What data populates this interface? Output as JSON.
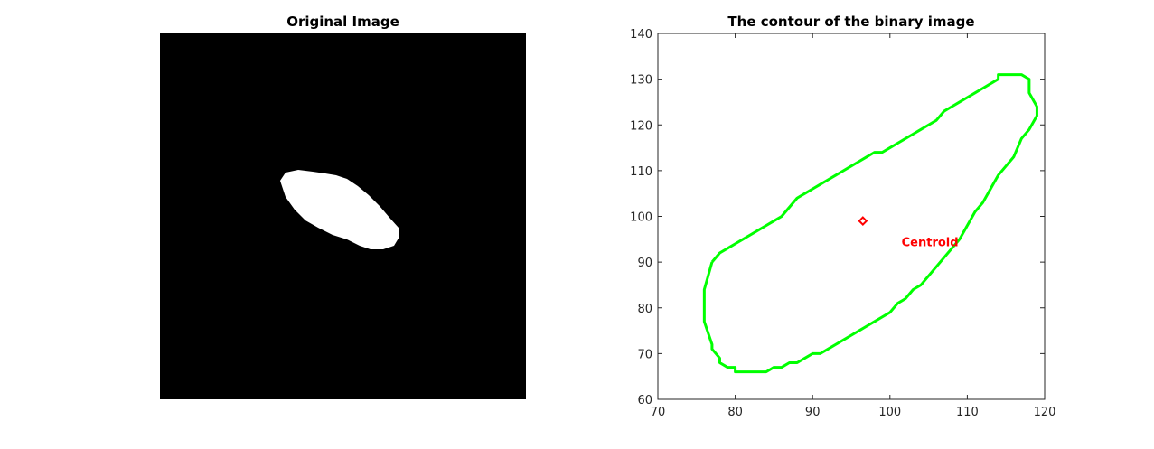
{
  "chart_data": [
    {
      "type": "image",
      "title": "Original Image",
      "background_color": "#000000",
      "foreground_color": "#ffffff",
      "blob_shape": "tilted white ellipse"
    },
    {
      "type": "line",
      "title": "The contour of the binary image",
      "xlabel": "",
      "ylabel": "",
      "xlim": [
        70,
        120
      ],
      "ylim": [
        60,
        140
      ],
      "xticks": [
        70,
        80,
        90,
        100,
        110,
        120
      ],
      "yticks": [
        60,
        70,
        80,
        90,
        100,
        110,
        120,
        130,
        140
      ],
      "grid": false,
      "series": [
        {
          "color": "#00ff00",
          "x": [
            77,
            76,
            76,
            76,
            77,
            77,
            78,
            78,
            79,
            79,
            79,
            80,
            80,
            80,
            81,
            82,
            82,
            83,
            83,
            84,
            84,
            85,
            86,
            87,
            88,
            89,
            90,
            90,
            91,
            92,
            93,
            94,
            95,
            96,
            97,
            98,
            99,
            100,
            101,
            102,
            103,
            104,
            105,
            106,
            107,
            108,
            109,
            110,
            111,
            112,
            113,
            114,
            115,
            116,
            117,
            118,
            119,
            119,
            118,
            118,
            117,
            116,
            115,
            115,
            114,
            114,
            113,
            112,
            111,
            110,
            109,
            108,
            107,
            106,
            105,
            104,
            103,
            102,
            101,
            100,
            99,
            98,
            97,
            96,
            95,
            94,
            93,
            92,
            91,
            90,
            89,
            88,
            87,
            86,
            85,
            84,
            83,
            82,
            81,
            80,
            79,
            78,
            77
          ],
          "y": [
            90,
            84,
            79,
            77,
            72,
            71,
            69,
            68,
            67,
            67,
            67,
            67,
            66,
            66,
            66,
            66,
            66,
            66,
            66,
            66,
            66,
            67,
            67,
            68,
            68,
            69,
            70,
            70,
            70,
            71,
            72,
            73,
            74,
            75,
            76,
            77,
            78,
            79,
            81,
            82,
            84,
            85,
            87,
            89,
            91,
            93,
            95,
            98,
            101,
            103,
            106,
            109,
            111,
            113,
            117,
            119,
            122,
            124,
            127,
            130,
            131,
            131,
            131,
            131,
            131,
            130,
            129,
            128,
            127,
            126,
            125,
            124,
            123,
            121,
            120,
            119,
            118,
            117,
            116,
            115,
            114,
            114,
            113,
            112,
            111,
            110,
            109,
            108,
            107,
            106,
            105,
            104,
            102,
            100,
            99,
            98,
            97,
            96,
            95,
            94,
            93,
            92,
            90
          ]
        }
      ],
      "centroid": {
        "x": 96.5,
        "y": 99,
        "color": "#ff0000"
      },
      "annotations": [
        {
          "text": "Centroid",
          "x": 101.5,
          "y": 93.5,
          "color": "#ff0000"
        }
      ]
    }
  ]
}
